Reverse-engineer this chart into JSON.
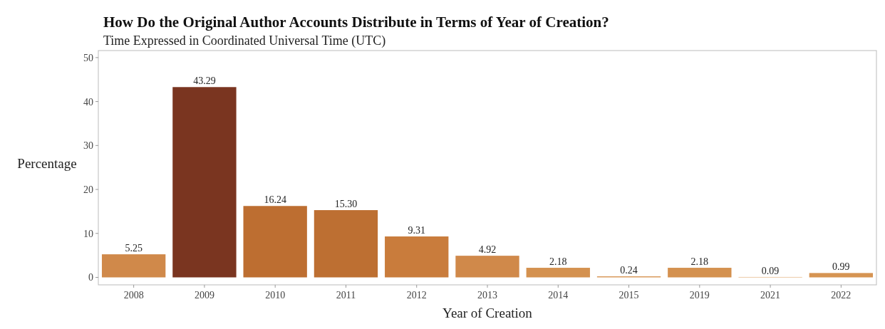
{
  "chart_data": {
    "type": "bar",
    "title": "How Do the Original Author Accounts Distribute in Terms of Year of Creation?",
    "subtitle": "Time Expressed in Coordinated Universal Time (UTC)",
    "xlabel": "Year of Creation",
    "ylabel": "Percentage",
    "categories": [
      "2008",
      "2009",
      "2010",
      "2011",
      "2012",
      "2013",
      "2014",
      "2015",
      "2019",
      "2021",
      "2022"
    ],
    "values": [
      5.25,
      43.29,
      16.24,
      15.3,
      9.31,
      4.92,
      2.18,
      0.24,
      2.18,
      0.09,
      0.99
    ],
    "value_labels": [
      "5.25",
      "43.29",
      "16.24",
      "15.30",
      "9.31",
      "4.92",
      "2.18",
      "0.24",
      "2.18",
      "0.09",
      "0.99"
    ],
    "colors": [
      "#d0894a",
      "#7a3520",
      "#bd6e31",
      "#bd6f32",
      "#c97c3c",
      "#d0894a",
      "#d4914f",
      "#d99a5a",
      "#d4914f",
      "#dca263",
      "#d69452"
    ],
    "ylim": [
      -1.7,
      51.6
    ],
    "yticks": [
      0,
      10,
      20,
      30,
      40,
      50
    ],
    "grid": false
  }
}
